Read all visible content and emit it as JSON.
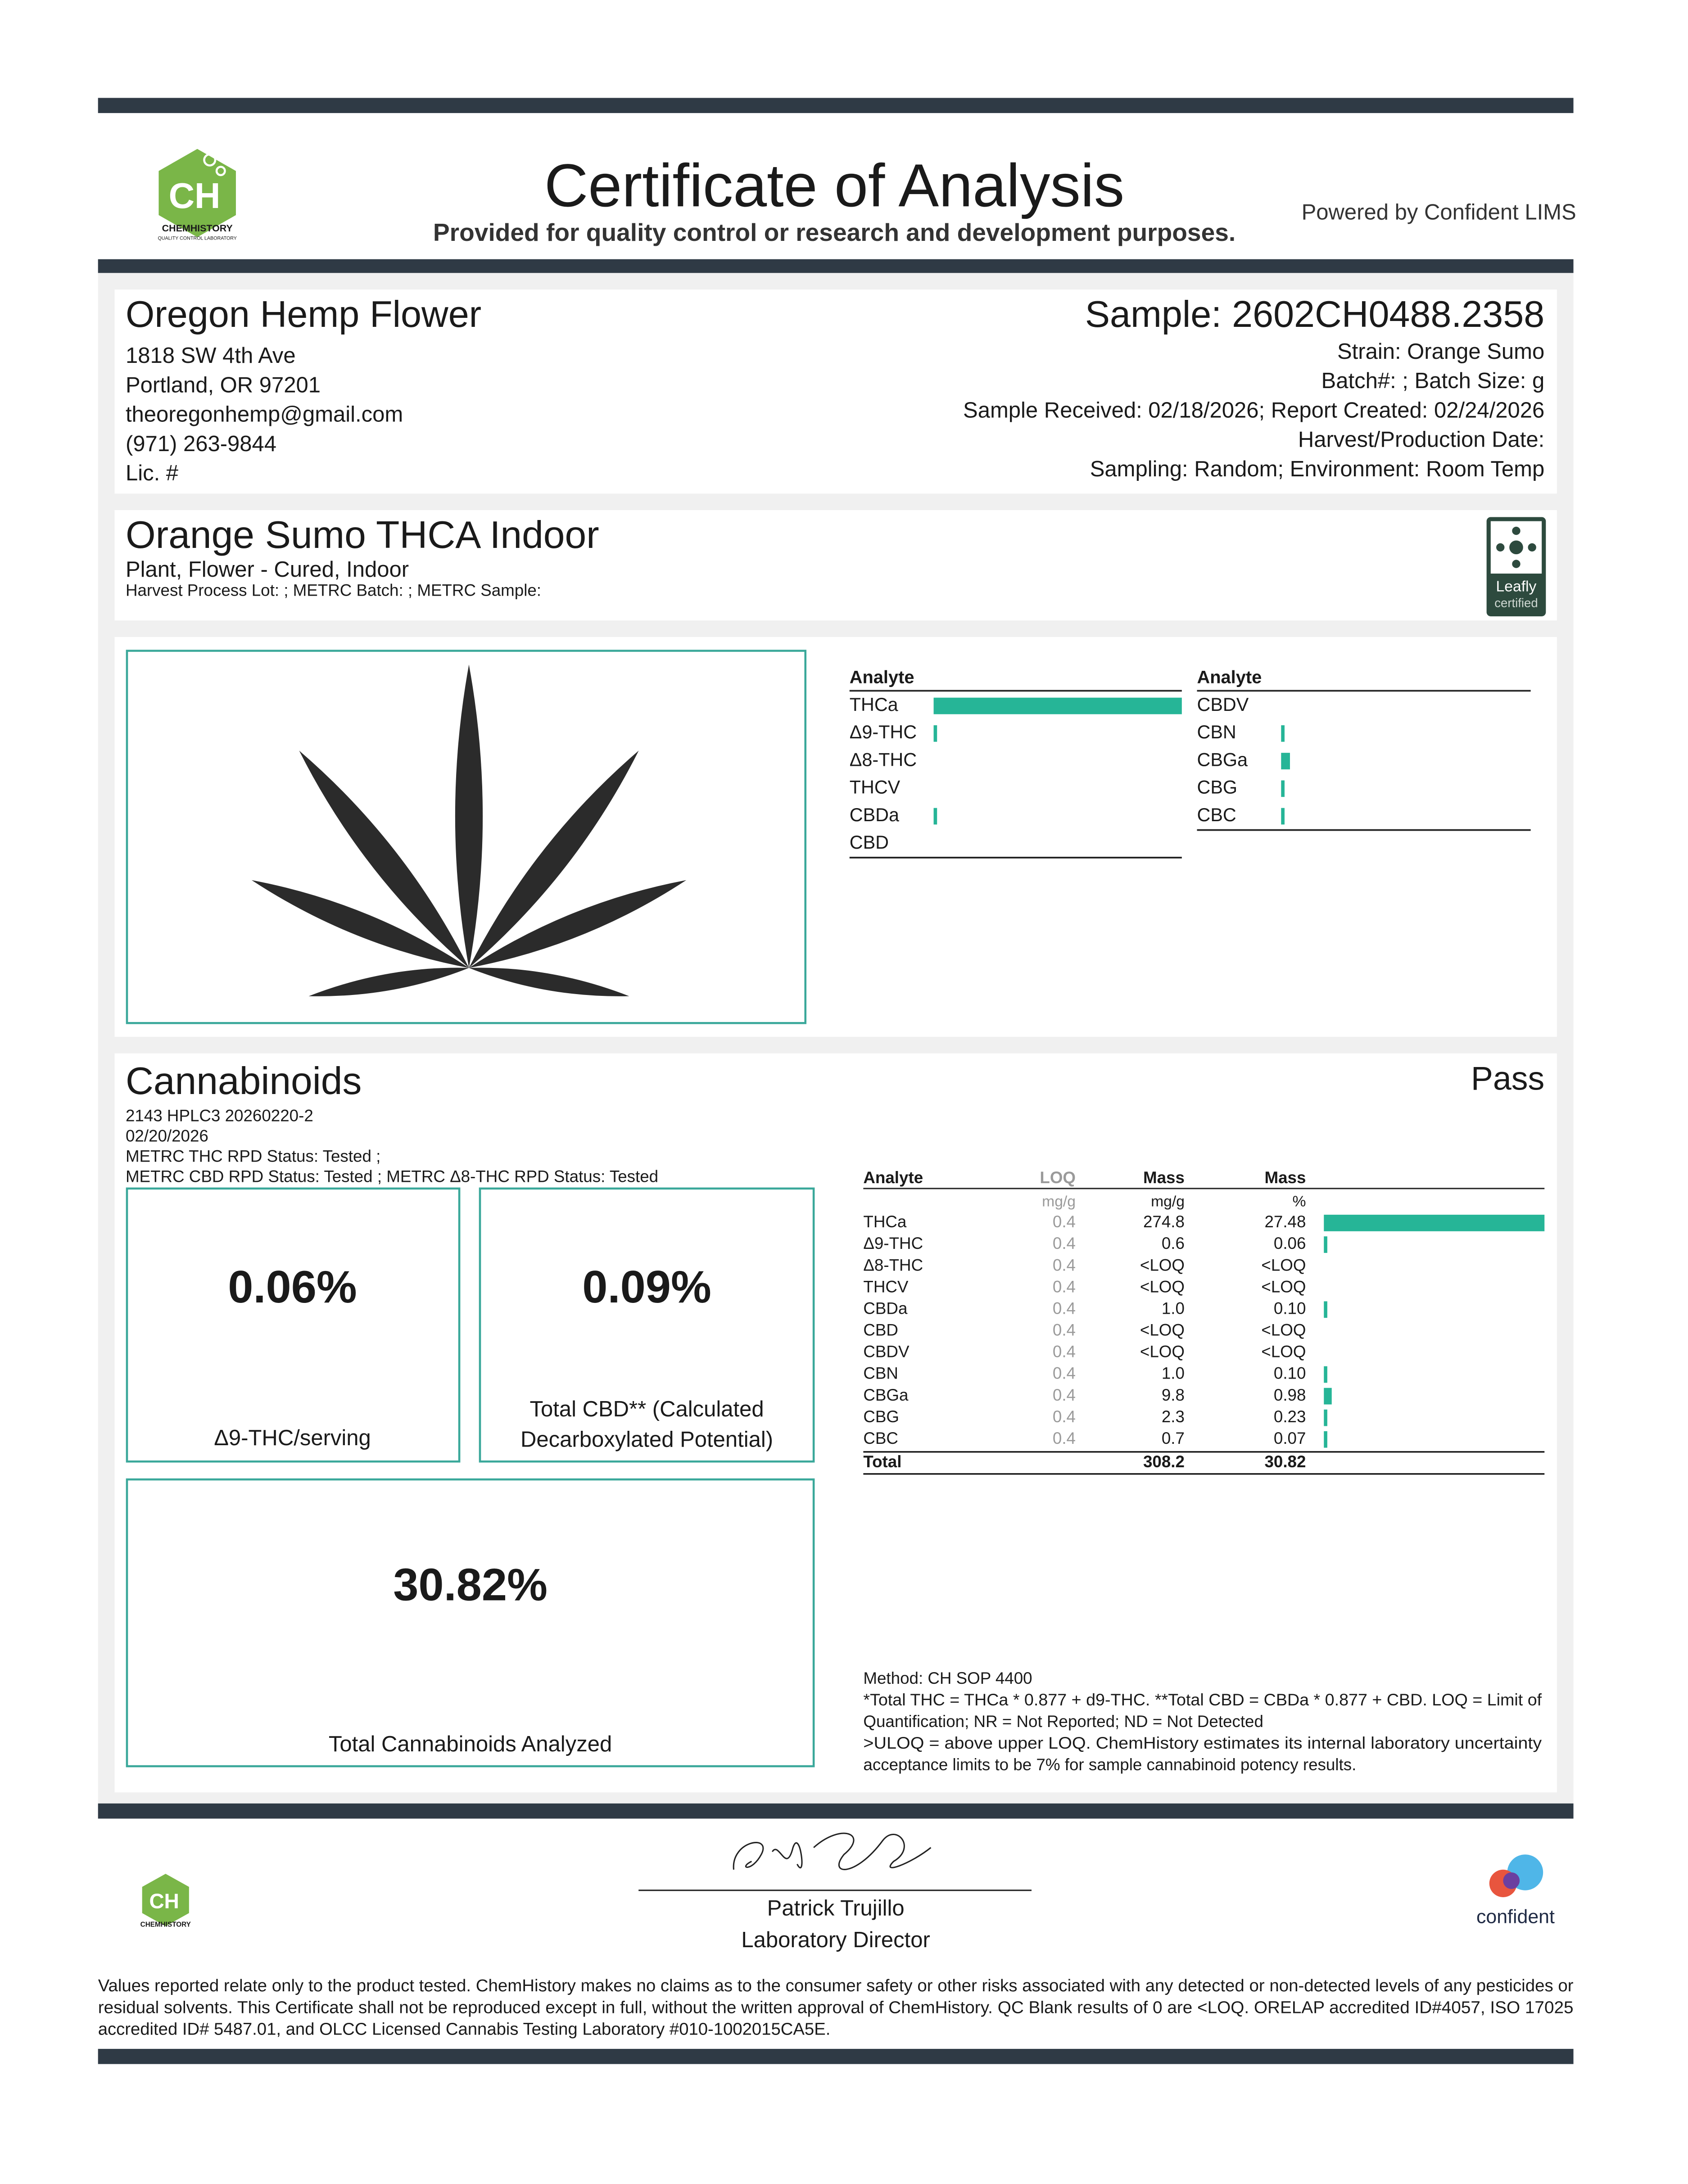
{
  "header": {
    "logo": {
      "mark": "CH",
      "name": "CHEMHISTORY",
      "tagline": "QUALITY CONTROL LABORATORY"
    },
    "title": "Certificate of Analysis",
    "subtitle": "Provided for quality control or research and development purposes.",
    "powered_by": "Powered by Confident LIMS"
  },
  "client": {
    "name": "Oregon Hemp Flower",
    "lines": [
      "1818 SW 4th Ave",
      "Portland, OR 97201",
      "theoregonhemp@gmail.com",
      "(971) 263-9844",
      "Lic. #"
    ]
  },
  "sample": {
    "id": "Sample: 2602CH0488.2358",
    "lines": [
      "Strain: Orange Sumo",
      "Batch#: ; Batch Size:  g",
      "Sample Received: 02/18/2026; Report Created: 02/24/2026",
      "Harvest/Production Date:",
      "Sampling: Random; Environment: Room Temp"
    ]
  },
  "product": {
    "name": "Orange Sumo THCA Indoor",
    "type": "Plant, Flower - Cured, Indoor",
    "lots": "Harvest Process Lot: ; METRC Batch: ; METRC Sample:",
    "badge": [
      "Leafly",
      "certified"
    ]
  },
  "cannabinoids": {
    "title": "Cannabinoids",
    "status": "Pass",
    "info": [
      "2143 HPLC3 20260220-2",
      "02/20/2026",
      "METRC THC RPD Status: Tested ;",
      "METRC CBD RPD Status: Tested ; METRC Δ8-THC RPD Status: Tested"
    ],
    "summary": [
      {
        "value": "0.06%",
        "label": [
          "Δ9-THC/serving"
        ]
      },
      {
        "value": "0.09%",
        "label": [
          "Total CBD** (Calculated",
          "Decarboxylated Potential)"
        ]
      },
      {
        "value": "30.82%",
        "label": [
          "Total Cannabinoids Analyzed"
        ]
      }
    ]
  },
  "table": {
    "header": [
      "Analyte",
      "LOQ",
      "Mass",
      "Mass"
    ],
    "units": [
      "mg/g",
      "mg/g",
      "%"
    ],
    "rows": [
      [
        "THCa",
        "0.4",
        "274.8",
        "27.48"
      ],
      [
        "Δ9-THC",
        "0.4",
        "0.6",
        "0.06"
      ],
      [
        "Δ8-THC",
        "0.4",
        "<LOQ",
        "<LOQ"
      ],
      [
        "THCV",
        "0.4",
        "<LOQ",
        "<LOQ"
      ],
      [
        "CBDa",
        "0.4",
        "1.0",
        "0.10"
      ],
      [
        "CBD",
        "0.4",
        "<LOQ",
        "<LOQ"
      ],
      [
        "CBDV",
        "0.4",
        "<LOQ",
        "<LOQ"
      ],
      [
        "CBN",
        "0.4",
        "1.0",
        "0.10"
      ],
      [
        "CBGa",
        "0.4",
        "9.8",
        "0.98"
      ],
      [
        "CBG",
        "0.4",
        "2.3",
        "0.23"
      ],
      [
        "CBC",
        "0.4",
        "0.7",
        "0.07"
      ]
    ],
    "total": [
      "Total",
      "308.2",
      "30.82"
    ]
  },
  "notes": [
    "Method: CH SOP 4400",
    "*Total THC = THCa * 0.877 + d9-THC. **Total CBD = CBDa * 0.877 + CBD. LOQ = Limit of",
    "Quantification; NR = Not Reported; ND = Not Detected",
    ">ULOQ = above upper LOQ. ChemHistory estimates its internal laboratory uncertainty",
    "acceptance limits to be 7% for sample cannabinoid potency results."
  ],
  "signature": {
    "name": "Patrick Trujillo",
    "role": "Laboratory Director"
  },
  "partner_logo": "confident",
  "disclaimer": [
    "Values reported relate only to the product tested. ChemHistory makes no claims as to the consumer safety or other risks associated with any detected or non-detected levels of any pesticides or",
    "residual solvents. This Certificate shall not be reproduced except in full, without the written approval of ChemHistory. QC Blank results of 0 are <LOQ.  ORELAP accredited ID#4057, ISO 17025",
    "accredited ID# 5487.01, and OLCC Licensed Cannabis Testing Laboratory #010-1002015CA5E."
  ]
}
